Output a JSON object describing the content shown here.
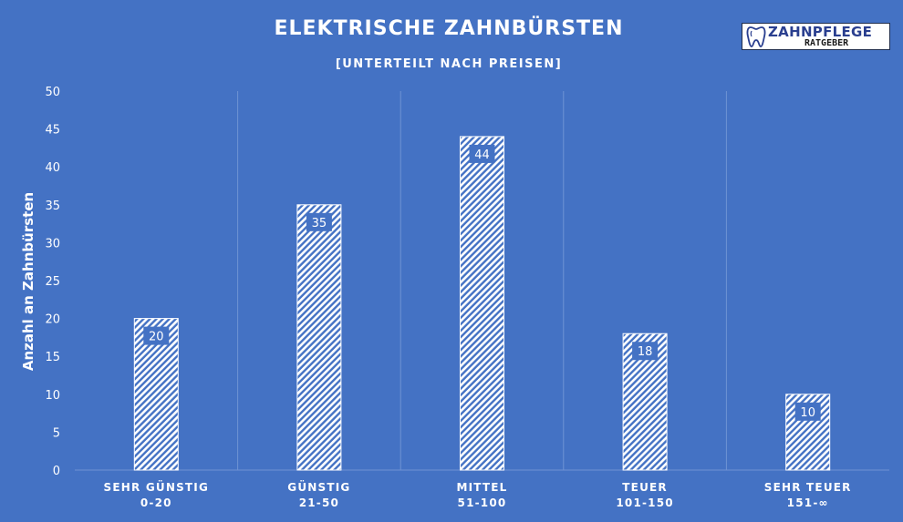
{
  "logo": {
    "line1": "ZAHNPFLEGE",
    "line2": "RATGEBER",
    "icon": "tooth-icon"
  },
  "chart_data": {
    "type": "bar",
    "title": "ELEKTRISCHE ZAHNBÜRSTEN",
    "subtitle": "[UNTERTEILT NACH PREISEN]",
    "xlabel": "",
    "ylabel": "Anzahl an Zahnbürsten",
    "ylim": [
      0,
      50
    ],
    "yticks": [
      0,
      5,
      10,
      15,
      20,
      25,
      30,
      35,
      40,
      45,
      50
    ],
    "categories": [
      {
        "name": "SEHR GÜNSTIG",
        "range": "0-20"
      },
      {
        "name": "GÜNSTIG",
        "range": "21-50"
      },
      {
        "name": "MITTEL",
        "range": "51-100"
      },
      {
        "name": "TEUER",
        "range": "101-150"
      },
      {
        "name": "SEHR TEUER",
        "range": "151-∞"
      }
    ],
    "values": [
      20,
      35,
      44,
      18,
      10
    ],
    "data_labels": [
      "20",
      "35",
      "44",
      "18",
      "10"
    ],
    "grid": {
      "vertical": true,
      "horizontal": false
    },
    "colors": {
      "background": "#4472c4",
      "bar_fill": "#ffffff",
      "label_box": "#4472c4",
      "grid": "#6f93d4"
    }
  }
}
